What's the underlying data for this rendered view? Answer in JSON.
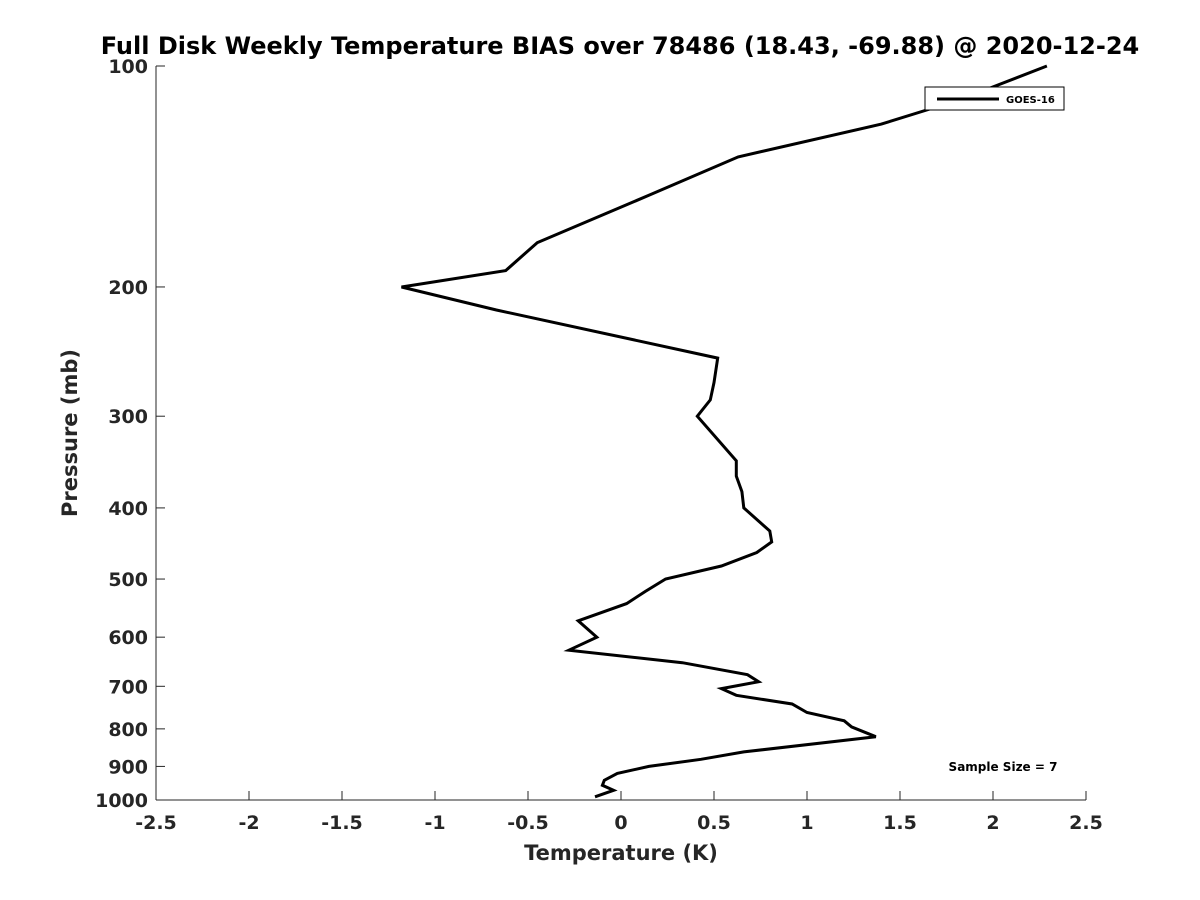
{
  "chart_data": {
    "type": "line",
    "title": "Full Disk Weekly Temperature BIAS over 78486 (18.43, -69.88) @ 2020-12-24",
    "xlabel": "Temperature (K)",
    "ylabel": "Pressure (mb)",
    "xlim": [
      -2.5,
      2.5
    ],
    "ylim": [
      100,
      1000
    ],
    "y_scale": "log",
    "y_reversed": true,
    "x_ticks": [
      "-2.5",
      "-2",
      "-1.5",
      "-1",
      "-0.5",
      "0",
      "0.5",
      "1",
      "1.5",
      "2",
      "2.5"
    ],
    "x_tick_values": [
      -2.5,
      -2,
      -1.5,
      -1,
      -0.5,
      0,
      0.5,
      1,
      1.5,
      2,
      2.5
    ],
    "y_ticks": [
      "100",
      "200",
      "300",
      "400",
      "500",
      "600",
      "700",
      "800",
      "900",
      "1000"
    ],
    "y_tick_values": [
      100,
      200,
      300,
      400,
      500,
      600,
      700,
      800,
      900,
      1000
    ],
    "grid": false,
    "legend_position": "top-right",
    "annotation": "Sample Size = 7",
    "line_color": "#000000",
    "series": [
      {
        "name": "GOES-16",
        "points": [
          [
            2.29,
            100
          ],
          [
            1.95,
            108
          ],
          [
            1.73,
            113
          ],
          [
            1.4,
            120
          ],
          [
            0.63,
            133
          ],
          [
            0.15,
            150
          ],
          [
            -0.45,
            174
          ],
          [
            -0.62,
            190
          ],
          [
            -1.18,
            200
          ],
          [
            -0.67,
            215
          ],
          [
            0.52,
            250
          ],
          [
            0.5,
            270
          ],
          [
            0.48,
            285
          ],
          [
            0.41,
            300
          ],
          [
            0.62,
            345
          ],
          [
            0.62,
            362
          ],
          [
            0.65,
            380
          ],
          [
            0.66,
            400
          ],
          [
            0.8,
            430
          ],
          [
            0.81,
            445
          ],
          [
            0.73,
            460
          ],
          [
            0.54,
            480
          ],
          [
            0.24,
            500
          ],
          [
            0.13,
            520
          ],
          [
            0.03,
            540
          ],
          [
            -0.23,
            570
          ],
          [
            -0.13,
            600
          ],
          [
            -0.28,
            625
          ],
          [
            0.33,
            650
          ],
          [
            0.68,
            675
          ],
          [
            0.74,
            690
          ],
          [
            0.54,
            705
          ],
          [
            0.62,
            720
          ],
          [
            0.92,
            740
          ],
          [
            1.0,
            760
          ],
          [
            1.2,
            780
          ],
          [
            1.24,
            795
          ],
          [
            1.37,
            820
          ],
          [
            0.66,
            860
          ],
          [
            0.43,
            880
          ],
          [
            0.15,
            900
          ],
          [
            -0.02,
            920
          ],
          [
            -0.09,
            940
          ],
          [
            -0.1,
            955
          ],
          [
            -0.04,
            970
          ],
          [
            -0.14,
            990
          ]
        ]
      }
    ]
  }
}
